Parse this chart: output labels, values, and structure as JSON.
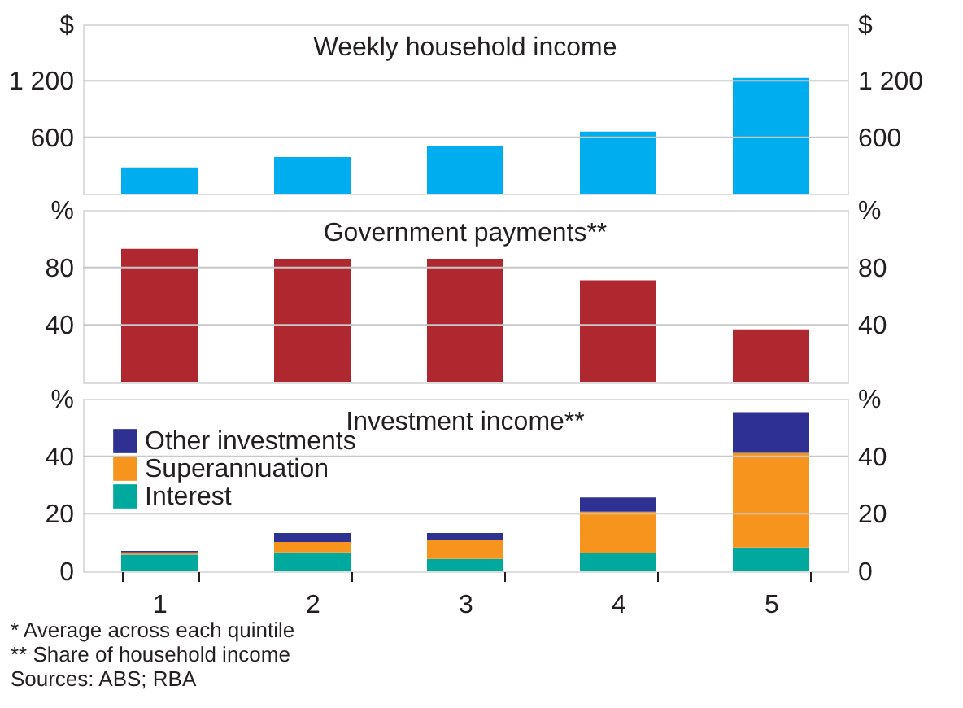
{
  "chart_data": [
    {
      "type": "bar",
      "title": "Weekly household income",
      "categories": [
        "1",
        "2",
        "3",
        "4",
        "5"
      ],
      "values": [
        280,
        390,
        510,
        660,
        1230
      ],
      "color": "#00aeef",
      "ylim": [
        0,
        1800
      ],
      "yticks": [
        600,
        {
          "value": 1200,
          "label": "1 200"
        },
        {
          "value": 1800,
          "label": "$"
        }
      ],
      "y2lim": [
        0,
        1800
      ],
      "y2ticks": [
        600,
        {
          "value": 1200,
          "label": "1 200"
        },
        {
          "value": 1800,
          "label": "$"
        }
      ],
      "grid": "y",
      "tick_labels": "y"
    },
    {
      "type": "bar",
      "title": "Government payments**",
      "categories": [
        "1",
        "2",
        "3",
        "4",
        "5"
      ],
      "values": [
        93,
        86,
        86,
        71,
        37
      ],
      "color": "#b0282f",
      "ylim": [
        0,
        120
      ],
      "yticks": [
        40,
        80,
        {
          "value": 120,
          "label": "%"
        }
      ],
      "y2lim": [
        0,
        120
      ],
      "y2ticks": [
        40,
        80,
        {
          "value": 120,
          "label": "%"
        }
      ],
      "grid": "y",
      "tick_labels": "y"
    },
    {
      "type": "bar",
      "title": "Investment income**",
      "categories": [
        "1",
        "2",
        "3",
        "4",
        "5"
      ],
      "stacked": true,
      "series": [
        {
          "name": "Interest",
          "color": "#00a99d",
          "values": [
            5.8,
            6.6,
            4.3,
            6.2,
            8.3
          ]
        },
        {
          "name": "Superannuation",
          "color": "#f7941d",
          "values": [
            0.8,
            3.6,
            6.5,
            14.5,
            32.9
          ]
        },
        {
          "name": "Other investments",
          "color": "#2e3192",
          "values": [
            0.5,
            3.1,
            2.5,
            5.0,
            14.1
          ]
        }
      ],
      "ylim": [
        0,
        60
      ],
      "yticks": [
        0,
        20,
        40,
        {
          "value": 60,
          "label": "%"
        }
      ],
      "y2lim": [
        0,
        60
      ],
      "y2ticks": [
        0,
        20,
        40,
        {
          "value": 60,
          "label": "%"
        }
      ],
      "grid": "y",
      "legend": "top left",
      "annotations": [
        "*     Average across each quintile",
        "**    Share of household income",
        "Sources: ABS; RBA"
      ]
    }
  ]
}
